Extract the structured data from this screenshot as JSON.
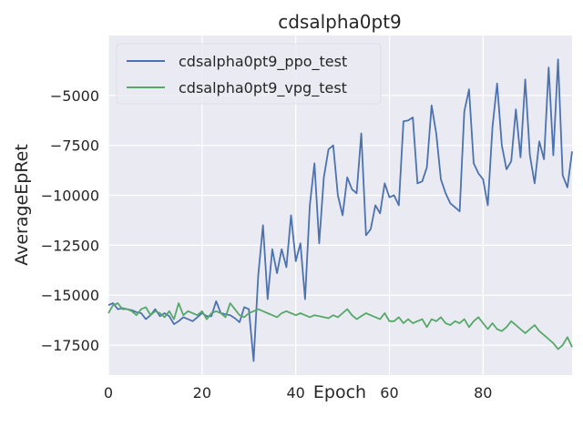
{
  "chart_data": {
    "type": "line",
    "title": "cdsalpha0pt9",
    "xlabel": "Epoch",
    "ylabel": "AverageEpRet",
    "xlim": [
      0,
      99
    ],
    "ylim": [
      -19000,
      -2000
    ],
    "xticks": [
      0,
      20,
      40,
      60,
      80
    ],
    "yticks": [
      -17500,
      -15000,
      -12500,
      -10000,
      -7500,
      -5000
    ],
    "xtick_labels": [
      "0",
      "20",
      "40",
      "60",
      "80"
    ],
    "ytick_labels": [
      "−17500",
      "−15000",
      "−12500",
      "−10000",
      "−7500",
      "−5000"
    ],
    "grid": true,
    "background": "#eaeaf2",
    "legend_position": "upper-left",
    "series": [
      {
        "name": "cdsalpha0pt9_ppo_test",
        "color": "#4c72b0",
        "x": [
          0,
          1,
          2,
          3,
          4,
          5,
          6,
          7,
          8,
          9,
          10,
          11,
          12,
          13,
          14,
          15,
          16,
          17,
          18,
          19,
          20,
          21,
          22,
          23,
          24,
          25,
          26,
          27,
          28,
          29,
          30,
          31,
          32,
          33,
          34,
          35,
          36,
          37,
          38,
          39,
          40,
          41,
          42,
          43,
          44,
          45,
          46,
          47,
          48,
          49,
          50,
          51,
          52,
          53,
          54,
          55,
          56,
          57,
          58,
          59,
          60,
          61,
          62,
          63,
          64,
          65,
          66,
          67,
          68,
          69,
          70,
          71,
          72,
          73,
          74,
          75,
          76,
          77,
          78,
          79,
          80,
          81,
          82,
          83,
          84,
          85,
          86,
          87,
          88,
          89,
          90,
          91,
          92,
          93,
          94,
          95,
          96,
          97,
          98,
          99
        ],
        "y": [
          -15500,
          -15400,
          -15700,
          -15650,
          -15700,
          -15750,
          -15850,
          -15900,
          -16200,
          -16000,
          -15700,
          -16050,
          -15900,
          -16050,
          -16450,
          -16300,
          -16100,
          -16200,
          -16300,
          -16100,
          -15900,
          -16050,
          -16050,
          -15300,
          -15900,
          -15950,
          -16000,
          -16150,
          -16350,
          -15600,
          -15700,
          -18300,
          -14000,
          -11500,
          -15200,
          -12700,
          -13900,
          -12700,
          -13600,
          -11000,
          -13300,
          -12400,
          -15200,
          -10500,
          -8400,
          -12400,
          -9100,
          -7700,
          -7500,
          -10000,
          -11000,
          -9100,
          -9700,
          -9900,
          -6900,
          -12000,
          -11700,
          -10500,
          -10900,
          -9400,
          -10100,
          -10000,
          -10500,
          -6300,
          -6250,
          -6100,
          -9400,
          -9300,
          -8600,
          -5500,
          -6900,
          -9200,
          -9900,
          -10400,
          -10600,
          -10800,
          -5800,
          -4700,
          -8400,
          -8900,
          -9200,
          -10500,
          -6600,
          -4400,
          -7500,
          -8700,
          -8300,
          -5700,
          -8100,
          -4200,
          -8000,
          -9400,
          -7300,
          -8200,
          -3600,
          -8000,
          -3200,
          -9000,
          -9600,
          -7800
        ]
      },
      {
        "name": "cdsalpha0pt9_vpg_test",
        "color": "#55a868",
        "x": [
          0,
          1,
          2,
          3,
          4,
          5,
          6,
          7,
          8,
          9,
          10,
          11,
          12,
          13,
          14,
          15,
          16,
          17,
          18,
          19,
          20,
          21,
          22,
          23,
          24,
          25,
          26,
          27,
          28,
          29,
          30,
          31,
          32,
          33,
          34,
          35,
          36,
          37,
          38,
          39,
          40,
          41,
          42,
          43,
          44,
          45,
          46,
          47,
          48,
          49,
          50,
          51,
          52,
          53,
          54,
          55,
          56,
          57,
          58,
          59,
          60,
          61,
          62,
          63,
          64,
          65,
          66,
          67,
          68,
          69,
          70,
          71,
          72,
          73,
          74,
          75,
          76,
          77,
          78,
          79,
          80,
          81,
          82,
          83,
          84,
          85,
          86,
          87,
          88,
          89,
          90,
          91,
          92,
          93,
          94,
          95,
          96,
          97,
          98,
          99
        ],
        "y": [
          -15900,
          -15500,
          -15400,
          -15700,
          -15700,
          -15800,
          -16000,
          -15700,
          -15600,
          -16000,
          -15800,
          -15900,
          -16100,
          -15800,
          -16200,
          -15400,
          -16000,
          -15800,
          -15900,
          -16000,
          -15800,
          -16200,
          -15900,
          -15800,
          -15900,
          -16100,
          -15400,
          -15700,
          -16000,
          -16100,
          -15900,
          -15800,
          -15700,
          -15800,
          -15900,
          -16000,
          -16100,
          -15900,
          -15800,
          -15900,
          -16000,
          -15900,
          -16000,
          -16100,
          -16000,
          -16050,
          -16100,
          -16150,
          -16000,
          -16100,
          -15900,
          -15700,
          -16000,
          -16200,
          -16050,
          -15900,
          -16000,
          -16100,
          -16200,
          -15900,
          -16300,
          -16300,
          -16100,
          -16400,
          -16200,
          -16400,
          -16300,
          -16200,
          -16600,
          -16200,
          -16300,
          -16100,
          -16400,
          -16500,
          -16300,
          -16400,
          -16200,
          -16600,
          -16300,
          -16100,
          -16400,
          -16700,
          -16400,
          -16700,
          -16800,
          -16600,
          -16300,
          -16500,
          -16700,
          -16900,
          -16700,
          -16500,
          -16800,
          -17000,
          -17200,
          -17400,
          -17700,
          -17500,
          -17100,
          -17600
        ]
      }
    ]
  }
}
